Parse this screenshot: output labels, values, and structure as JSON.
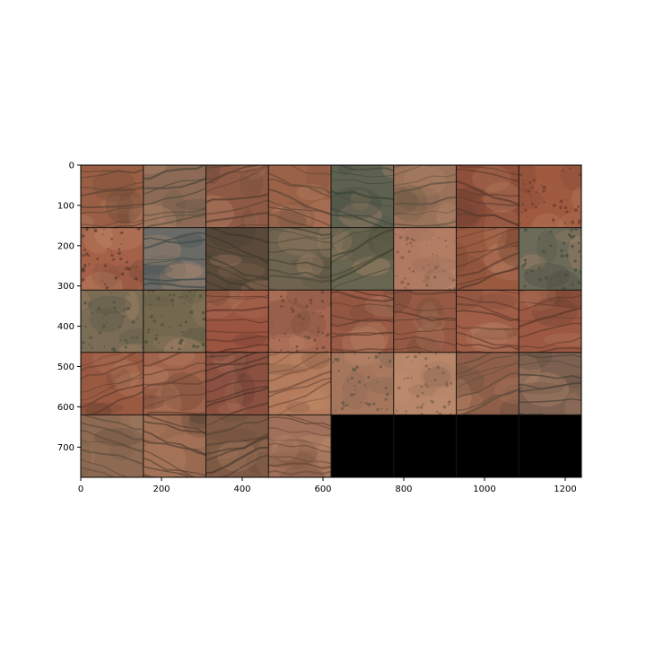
{
  "figure": {
    "x_ticks": [
      "0",
      "200",
      "400",
      "600",
      "800",
      "1000",
      "1200"
    ],
    "y_ticks": [
      "0",
      "100",
      "200",
      "300",
      "400",
      "500",
      "600",
      "700"
    ],
    "x_range": [
      0,
      1240
    ],
    "y_range": [
      0,
      775
    ],
    "grid": {
      "rows": 5,
      "cols": 8,
      "tile_count": 36,
      "empty_fill": "#000000"
    },
    "tile_palette": [
      "#9a5a3f",
      "#8e5a44",
      "#7d5a45",
      "#a06a4c",
      "#6f6350",
      "#8a6c55",
      "#b07050",
      "#5f5a48",
      "#a87a5e",
      "#935443"
    ],
    "tiles": [
      {
        "dominant": "#9a5e44",
        "accent": "#5d4333",
        "texture": "channels"
      },
      {
        "dominant": "#8c6a55",
        "accent": "#4f4a3c",
        "texture": "channels"
      },
      {
        "dominant": "#8f5a45",
        "accent": "#5a4032",
        "texture": "channels"
      },
      {
        "dominant": "#9b6248",
        "accent": "#5b4334",
        "texture": "channels"
      },
      {
        "dominant": "#5f6150",
        "accent": "#39443a",
        "texture": "channels"
      },
      {
        "dominant": "#9a7259",
        "accent": "#605040",
        "texture": "channels"
      },
      {
        "dominant": "#8f4f3a",
        "accent": "#5c3a2c",
        "texture": "channels"
      },
      {
        "dominant": "#a05a40",
        "accent": "#6a3a2a",
        "texture": "speckle"
      },
      {
        "dominant": "#a56048",
        "accent": "#5a3a2e",
        "texture": "speckle"
      },
      {
        "dominant": "#6a6a66",
        "accent": "#3e4c4a",
        "texture": "channels"
      },
      {
        "dominant": "#5b4a3a",
        "accent": "#3d3a2c",
        "texture": "channels"
      },
      {
        "dominant": "#6f6450",
        "accent": "#4a4838",
        "texture": "channels"
      },
      {
        "dominant": "#686650",
        "accent": "#434634",
        "texture": "channels"
      },
      {
        "dominant": "#b07a62",
        "accent": "#7a5746",
        "texture": "speckle"
      },
      {
        "dominant": "#9a5a40",
        "accent": "#5e3a2c",
        "texture": "channels"
      },
      {
        "dominant": "#6c6a58",
        "accent": "#45483c",
        "texture": "speckle"
      },
      {
        "dominant": "#7a6c55",
        "accent": "#4f5140",
        "texture": "speckle"
      },
      {
        "dominant": "#74684f",
        "accent": "#4a4c3a",
        "texture": "speckle"
      },
      {
        "dominant": "#9a5440",
        "accent": "#5e3428",
        "texture": "channels"
      },
      {
        "dominant": "#a46650",
        "accent": "#6a4434",
        "texture": "speckle"
      },
      {
        "dominant": "#9a5a45",
        "accent": "#5e3a2c",
        "texture": "channels"
      },
      {
        "dominant": "#965a44",
        "accent": "#5c3a2d",
        "texture": "channels"
      },
      {
        "dominant": "#a15e47",
        "accent": "#633c2e",
        "texture": "channels"
      },
      {
        "dominant": "#9c5842",
        "accent": "#5e382a",
        "texture": "channels"
      },
      {
        "dominant": "#9a5a42",
        "accent": "#613b2c",
        "texture": "channels"
      },
      {
        "dominant": "#a0634b",
        "accent": "#644030",
        "texture": "channels"
      },
      {
        "dominant": "#8c5040",
        "accent": "#52342a",
        "texture": "channels"
      },
      {
        "dominant": "#b47c5c",
        "accent": "#7a5240",
        "texture": "channels"
      },
      {
        "dominant": "#a5755c",
        "accent": "#5e5646",
        "texture": "speckle"
      },
      {
        "dominant": "#b8876a",
        "accent": "#7c5c48",
        "texture": "speckle"
      },
      {
        "dominant": "#8f5e48",
        "accent": "#55493a",
        "texture": "channels"
      },
      {
        "dominant": "#7d6050",
        "accent": "#4c4238",
        "texture": "channels"
      },
      {
        "dominant": "#8e6a52",
        "accent": "#5a4a3a",
        "texture": "channels"
      },
      {
        "dominant": "#9a6a50",
        "accent": "#4a3a2e",
        "texture": "channels"
      },
      {
        "dominant": "#7e5a45",
        "accent": "#4c3a2e",
        "texture": "channels"
      },
      {
        "dominant": "#a0705a",
        "accent": "#664634",
        "texture": "channels"
      }
    ]
  }
}
